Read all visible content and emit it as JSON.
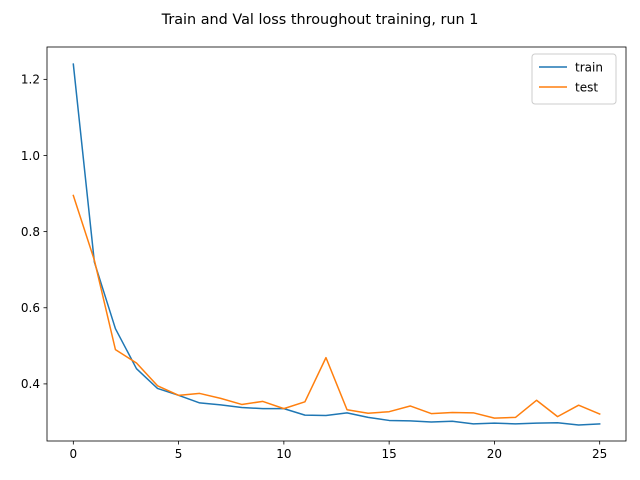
{
  "chart_data": {
    "type": "line",
    "title": "Train and Val loss throughout training, run 1",
    "xlabel": "",
    "ylabel": "",
    "xlim": [
      -1.25,
      26.25
    ],
    "ylim": [
      0.25,
      1.285
    ],
    "xticks": [
      0,
      5,
      10,
      15,
      20,
      25
    ],
    "yticks": [
      0.4,
      0.6,
      0.8,
      1.0,
      1.2
    ],
    "ytick_labels": [
      "0.4",
      "0.6",
      "0.8",
      "1.0",
      "1.2"
    ],
    "grid": false,
    "legend_position": "upper right",
    "x": [
      0,
      1,
      2,
      3,
      4,
      5,
      6,
      7,
      8,
      9,
      10,
      11,
      12,
      13,
      14,
      15,
      16,
      17,
      18,
      19,
      20,
      21,
      22,
      23,
      24,
      25
    ],
    "series": [
      {
        "name": "train",
        "color": "#1f77b4",
        "values": [
          1.24,
          0.72,
          0.545,
          0.44,
          0.388,
          0.37,
          0.35,
          0.345,
          0.338,
          0.335,
          0.335,
          0.318,
          0.317,
          0.324,
          0.312,
          0.304,
          0.303,
          0.3,
          0.302,
          0.295,
          0.297,
          0.295,
          0.297,
          0.298,
          0.292,
          0.295
        ]
      },
      {
        "name": "test",
        "color": "#ff7f0e",
        "values": [
          0.895,
          0.725,
          0.49,
          0.455,
          0.395,
          0.37,
          0.375,
          0.362,
          0.346,
          0.354,
          0.335,
          0.353,
          0.469,
          0.332,
          0.323,
          0.327,
          0.342,
          0.322,
          0.325,
          0.324,
          0.31,
          0.312,
          0.357,
          0.314,
          0.344,
          0.321
        ]
      }
    ]
  }
}
